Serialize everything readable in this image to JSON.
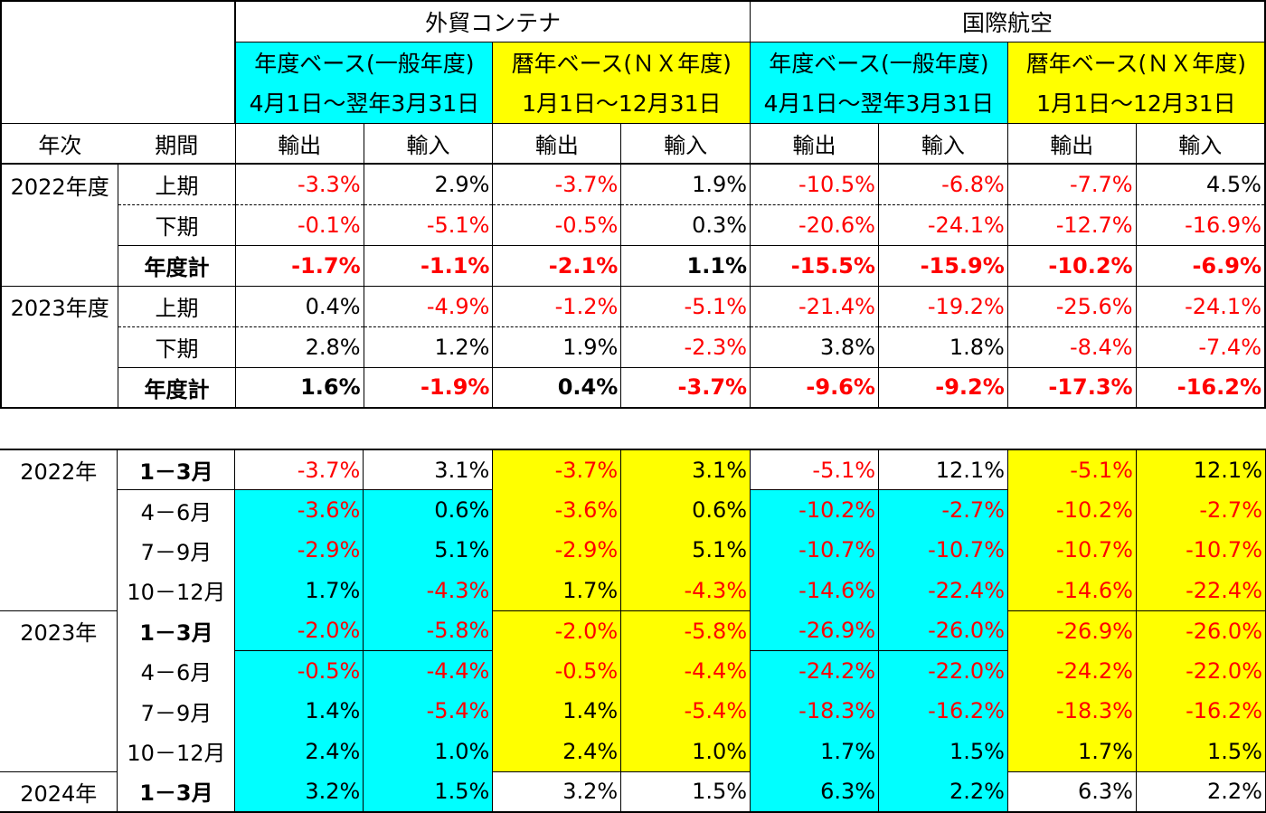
{
  "header": {
    "groups": [
      "外貿コンテナ",
      "国際航空"
    ],
    "base_fiscal": "年度ベース(一般年度)",
    "base_calendar": "暦年ベース(ＮＸ年度)",
    "period_fiscal": "4月1日～翌年3月31日",
    "period_calendar": "1月1日～12月31日",
    "col_year": "年次",
    "col_period": "期間",
    "export": "輸出",
    "import": "輸入"
  },
  "fiscal_rows": [
    {
      "year": "2022年度",
      "period": "上期",
      "total": false,
      "values": [
        "-3.3%",
        "2.9%",
        "-3.7%",
        "1.9%",
        "-10.5%",
        "-6.8%",
        "-7.7%",
        "4.5%"
      ]
    },
    {
      "year": "",
      "period": "下期",
      "total": false,
      "values": [
        "-0.1%",
        "-5.1%",
        "-0.5%",
        "0.3%",
        "-20.6%",
        "-24.1%",
        "-12.7%",
        "-16.9%"
      ]
    },
    {
      "year": "",
      "period": "年度計",
      "total": true,
      "values": [
        "-1.7%",
        "-1.1%",
        "-2.1%",
        "1.1%",
        "-15.5%",
        "-15.9%",
        "-10.2%",
        "-6.9%"
      ]
    },
    {
      "year": "2023年度",
      "period": "上期",
      "total": false,
      "values": [
        "0.4%",
        "-4.9%",
        "-1.2%",
        "-5.1%",
        "-21.4%",
        "-19.2%",
        "-25.6%",
        "-24.1%"
      ]
    },
    {
      "year": "",
      "period": "下期",
      "total": false,
      "values": [
        "2.8%",
        "1.2%",
        "1.9%",
        "-2.3%",
        "3.8%",
        "1.8%",
        "-8.4%",
        "-7.4%"
      ]
    },
    {
      "year": "",
      "period": "年度計",
      "total": true,
      "values": [
        "1.6%",
        "-1.9%",
        "0.4%",
        "-3.7%",
        "-9.6%",
        "-9.2%",
        "-17.3%",
        "-16.2%"
      ]
    }
  ],
  "quarter_rows": [
    {
      "year": "2022年",
      "period": "1－3月",
      "bold": true,
      "values": [
        "-3.7%",
        "3.1%",
        "-3.7%",
        "3.1%",
        "-5.1%",
        "12.1%",
        "-5.1%",
        "12.1%"
      ]
    },
    {
      "year": "",
      "period": "4－6月",
      "bold": false,
      "values": [
        "-3.6%",
        "0.6%",
        "-3.6%",
        "0.6%",
        "-10.2%",
        "-2.7%",
        "-10.2%",
        "-2.7%"
      ]
    },
    {
      "year": "",
      "period": "7－9月",
      "bold": false,
      "values": [
        "-2.9%",
        "5.1%",
        "-2.9%",
        "5.1%",
        "-10.7%",
        "-10.7%",
        "-10.7%",
        "-10.7%"
      ]
    },
    {
      "year": "",
      "period": "10－12月",
      "bold": false,
      "values": [
        "1.7%",
        "-4.3%",
        "1.7%",
        "-4.3%",
        "-14.6%",
        "-22.4%",
        "-14.6%",
        "-22.4%"
      ]
    },
    {
      "year": "2023年",
      "period": "1－3月",
      "bold": true,
      "values": [
        "-2.0%",
        "-5.8%",
        "-2.0%",
        "-5.8%",
        "-26.9%",
        "-26.0%",
        "-26.9%",
        "-26.0%"
      ]
    },
    {
      "year": "",
      "period": "4－6月",
      "bold": false,
      "values": [
        "-0.5%",
        "-4.4%",
        "-0.5%",
        "-4.4%",
        "-24.2%",
        "-22.0%",
        "-24.2%",
        "-22.0%"
      ]
    },
    {
      "year": "",
      "period": "7－9月",
      "bold": false,
      "values": [
        "1.4%",
        "-5.4%",
        "1.4%",
        "-5.4%",
        "-18.3%",
        "-16.2%",
        "-18.3%",
        "-16.2%"
      ]
    },
    {
      "year": "",
      "period": "10－12月",
      "bold": false,
      "values": [
        "2.4%",
        "1.0%",
        "2.4%",
        "1.0%",
        "1.7%",
        "1.5%",
        "1.7%",
        "1.5%"
      ]
    },
    {
      "year": "2024年",
      "period": "1－3月",
      "bold": true,
      "values": [
        "3.2%",
        "1.5%",
        "3.2%",
        "1.5%",
        "6.3%",
        "2.2%",
        "6.3%",
        "2.2%"
      ]
    }
  ],
  "colors": {
    "cyan": "#00ffff",
    "yellow": "#ffff00",
    "negative": "#ff0000"
  }
}
